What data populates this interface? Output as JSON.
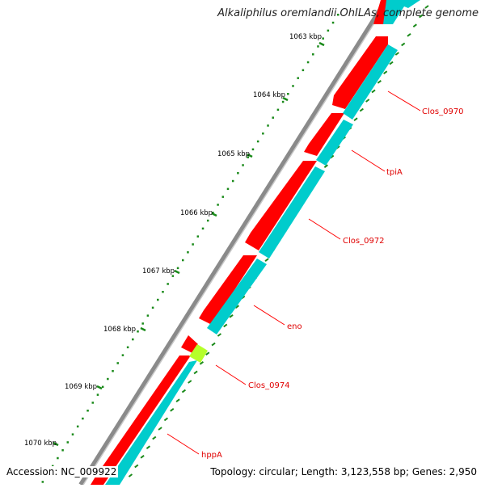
{
  "title": "Alkaliphilus oremlandii OhILAs, complete genome",
  "footer": {
    "accession": "Accession: NC_009922",
    "summary": "Topology: circular; Length: 3,123,558 bp; Genes: 2,950"
  },
  "ticks": [
    {
      "label": "1063 kbp"
    },
    {
      "label": "1064 kbp"
    },
    {
      "label": "1065 kbp"
    },
    {
      "label": "1066 kbp"
    },
    {
      "label": "1067 kbp"
    },
    {
      "label": "1068 kbp"
    },
    {
      "label": "1069 kbp"
    },
    {
      "label": "1070 kbp"
    }
  ],
  "genes": [
    {
      "label": "Clos_0970"
    },
    {
      "label": "tpiA"
    },
    {
      "label": "Clos_0972"
    },
    {
      "label": "eno"
    },
    {
      "label": "Clos_0974"
    },
    {
      "label": "hppA"
    }
  ],
  "colors": {
    "backbone": "#8a8a8a",
    "cds_forward": "#ff0000",
    "cds_reverse": "#00cccc",
    "highlight": "#b5ff2a",
    "tick": "#1a8a1a",
    "label": "#e00000",
    "label_line": "#ff0000"
  }
}
